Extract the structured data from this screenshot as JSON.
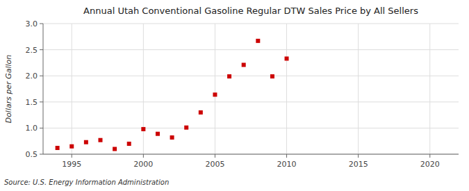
{
  "chart_data": {
    "type": "scatter",
    "title": "Annual Utah Conventional Gasoline Regular DTW Sales Price by All Sellers",
    "y_label": "Dollars per Gallon",
    "source": "Source: U.S. Energy Information Administration",
    "x": [
      1994,
      1995,
      1996,
      1997,
      1998,
      1999,
      2000,
      2001,
      2002,
      2003,
      2004,
      2005,
      2006,
      2007,
      2008,
      2009,
      2010
    ],
    "values": [
      0.62,
      0.65,
      0.73,
      0.77,
      0.6,
      0.7,
      0.98,
      0.89,
      0.82,
      1.01,
      1.3,
      1.64,
      1.99,
      2.21,
      2.67,
      1.99,
      2.33
    ],
    "color": "#cc0000",
    "marker": "square",
    "xlim": [
      1993,
      2022
    ],
    "ylim": [
      0.5,
      3.0
    ],
    "xticks": [
      1995,
      2000,
      2005,
      2010,
      2015,
      2020
    ],
    "yticks": [
      0.5,
      {
        "value": 1.0,
        "label": "1.0"
      },
      1.5,
      {
        "value": 2.0,
        "label": "2.0"
      },
      2.5,
      {
        "value": 3.0,
        "label": "3.0"
      }
    ],
    "grid": true
  }
}
